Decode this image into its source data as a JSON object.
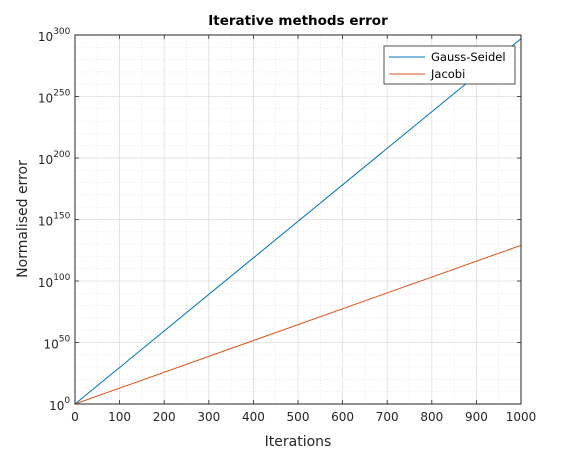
{
  "chart_data": {
    "type": "line",
    "title": "Iterative methods error",
    "xlabel": "Iterations",
    "ylabel": "Normalised error",
    "xlim": [
      0,
      1000
    ],
    "ylim_log10": [
      0,
      300
    ],
    "yscale": "log",
    "xticks": [
      0,
      100,
      200,
      300,
      400,
      500,
      600,
      700,
      800,
      900,
      1000
    ],
    "yticks_exponents": [
      0,
      50,
      100,
      150,
      200,
      250,
      300
    ],
    "ytick_base": "10",
    "grid": true,
    "minor_grid": true,
    "legend_position": "top-right",
    "series": [
      {
        "name": "Gauss-Seidel",
        "color": "#0072BD",
        "x": [
          0,
          1000
        ],
        "log10_y": [
          0,
          297
        ]
      },
      {
        "name": "Jacobi",
        "color": "#D95319",
        "x": [
          0,
          1000
        ],
        "log10_y": [
          0,
          129
        ]
      }
    ]
  }
}
